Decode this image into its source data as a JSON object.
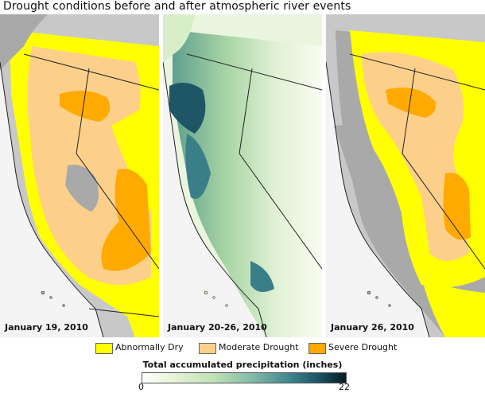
{
  "title": "Drought conditions before and after atmospheric river events",
  "panels": [
    {
      "date": "January 19, 2010"
    },
    {
      "date": "January 20-26, 2010"
    },
    {
      "date": "January 26, 2010"
    }
  ],
  "legend": [
    {
      "label": "Abnormally Dry",
      "color": "#ffff00"
    },
    {
      "label": "Moderate Drought",
      "color": "#fcd08a"
    },
    {
      "label": "Severe Drought",
      "color": "#ffaa00"
    }
  ],
  "precipitation_scale": {
    "title": "Total accumulated precipitation (inches)",
    "min": "0",
    "max": "22"
  },
  "colors": {
    "ocean": "#f4f4f4",
    "land_no_drought": "#a9a9a9",
    "neighbor_land": "#c8c8c8",
    "borders": "#222222"
  }
}
